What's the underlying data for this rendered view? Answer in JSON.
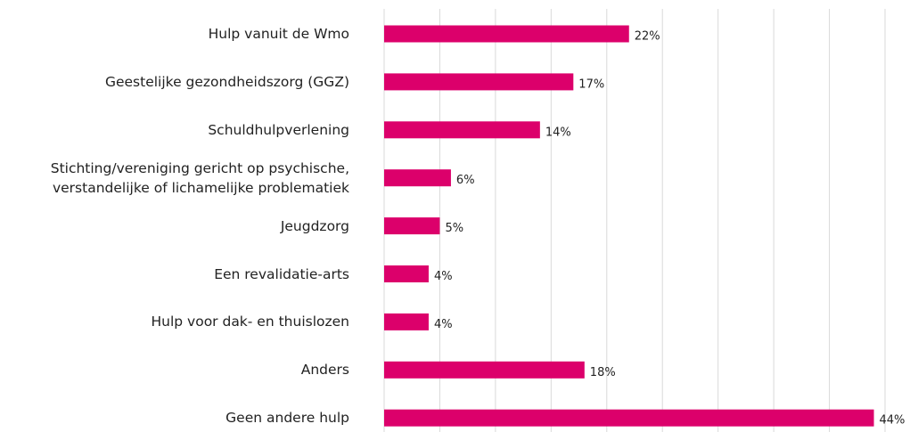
{
  "chart_data": {
    "type": "bar",
    "orientation": "horizontal",
    "categories": [
      "Hulp vanuit de Wmo",
      "Geestelijke gezondheidszorg (GGZ)",
      "Schuldhulpverlening",
      "Stichting/vereniging gericht op psychische, verstandelijke of lichamelijke problematiek",
      "Jeugdzorg",
      "Een revalidatie-arts",
      "Hulp voor dak- en thuislozen",
      "Anders",
      "Geen andere hulp"
    ],
    "values": [
      22,
      17,
      14,
      6,
      5,
      4,
      4,
      18,
      44
    ],
    "value_labels": [
      "22%",
      "17%",
      "14%",
      "6%",
      "5%",
      "4%",
      "4%",
      "18%",
      "44%"
    ],
    "color": "#dc006b",
    "xlim": [
      0,
      45
    ],
    "xticks": [
      0,
      5,
      10,
      15,
      20,
      25,
      30,
      35,
      40,
      45
    ],
    "grid": true
  }
}
